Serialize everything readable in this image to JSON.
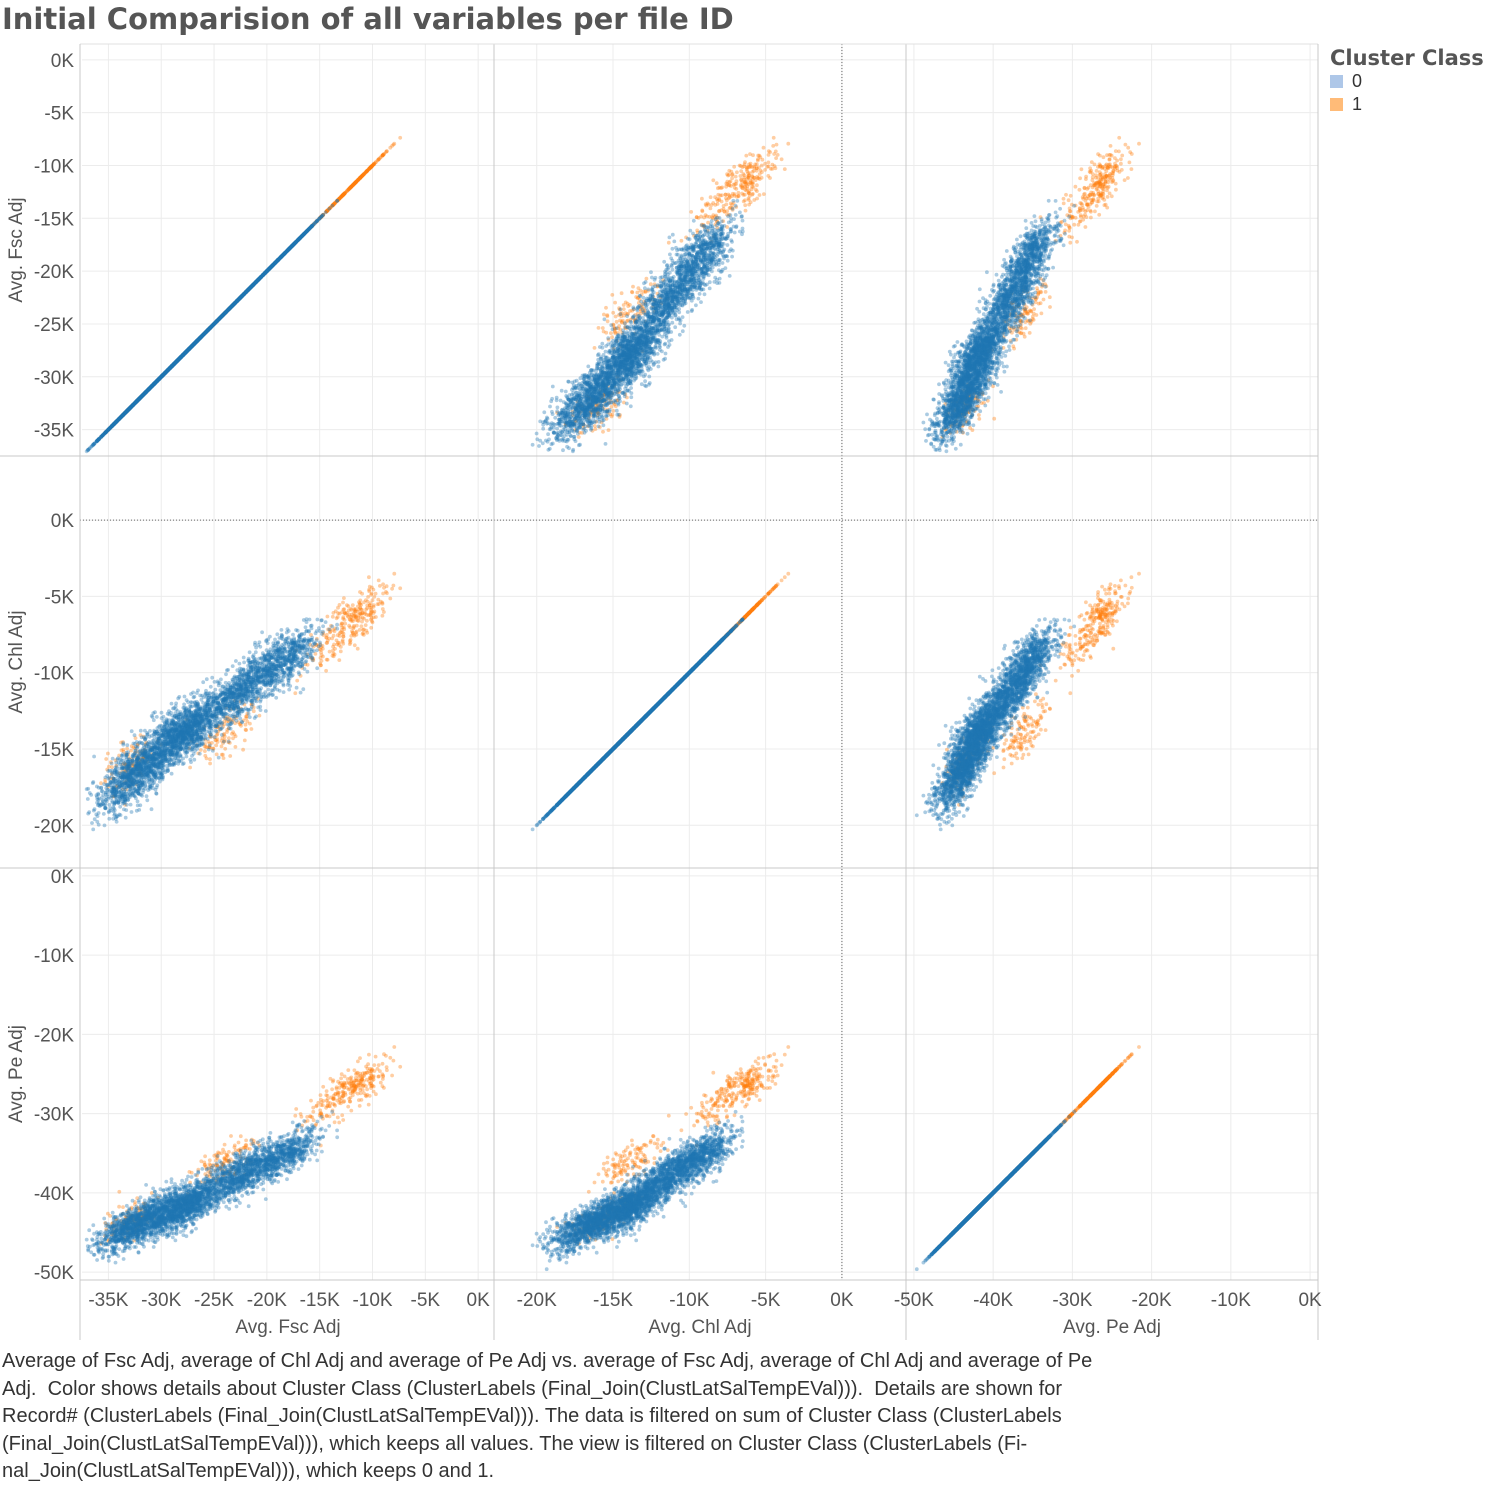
{
  "title": "Initial Comparision of all variables per file ID",
  "legend": {
    "title": "Cluster Class",
    "items": [
      {
        "label": "0",
        "color": "#aec7e8"
      },
      {
        "label": "1",
        "color": "#ffbb78"
      }
    ]
  },
  "caption_lines": [
    "Average of Fsc Adj, average of Chl Adj and average of Pe Adj vs. average of Fsc Adj, average of Chl Adj and average of Pe",
    "Adj.  Color shows details about Cluster Class (ClusterLabels (Final_Join(ClustLatSalTempEVal))).  Details are shown for",
    "Record# (ClusterLabels (Final_Join(ClustLatSalTempEVal))). The data is filtered on sum of Cluster Class (ClusterLabels",
    "(Final_Join(ClustLatSalTempEVal))), which keeps all values. The view is filtered on Cluster Class (ClusterLabels (Fi-",
    "nal_Join(ClustLatSalTempEVal))), which keeps 0 and 1."
  ],
  "chart_data": {
    "type": "scatter",
    "title": "Initial Comparision of all variables per file ID",
    "grid": true,
    "point_colors": {
      "0": "#1f77b4",
      "1": "#ff7f0e"
    },
    "variables": [
      {
        "name": "Avg. Fsc Adj",
        "range": [
          -37500,
          1500
        ],
        "ticks": [
          {
            "v": 0,
            "l": "0K"
          },
          {
            "v": -5000,
            "l": "-5K"
          },
          {
            "v": -10000,
            "l": "-10K"
          },
          {
            "v": -15000,
            "l": "-15K"
          },
          {
            "v": -20000,
            "l": "-20K"
          },
          {
            "v": -25000,
            "l": "-25K"
          },
          {
            "v": -30000,
            "l": "-30K"
          },
          {
            "v": -35000,
            "l": "-35K"
          }
        ]
      },
      {
        "name": "Avg. Chl Adj",
        "range": [
          -22800,
          4200
        ],
        "ticks": [
          {
            "v": 0,
            "l": "0K"
          },
          {
            "v": -5000,
            "l": "-5K"
          },
          {
            "v": -10000,
            "l": "-10K"
          },
          {
            "v": -15000,
            "l": "-15K"
          },
          {
            "v": -20000,
            "l": "-20K"
          }
        ]
      },
      {
        "name": "Avg. Pe Adj",
        "range": [
          -51000,
          1000
        ],
        "ticks": [
          {
            "v": 0,
            "l": "0K"
          },
          {
            "v": -10000,
            "l": "-10K"
          },
          {
            "v": -20000,
            "l": "-20K"
          },
          {
            "v": -30000,
            "l": "-30K"
          },
          {
            "v": -40000,
            "l": "-40K"
          },
          {
            "v": -50000,
            "l": "-50K"
          }
        ]
      }
    ],
    "x_ticks": [
      [
        {
          "v": -35000,
          "l": "-35K"
        },
        {
          "v": -30000,
          "l": "-30K"
        },
        {
          "v": -25000,
          "l": "-25K"
        },
        {
          "v": -20000,
          "l": "-20K"
        },
        {
          "v": -15000,
          "l": "-15K"
        },
        {
          "v": -10000,
          "l": "-10K"
        },
        {
          "v": -5000,
          "l": "-5K"
        },
        {
          "v": 0,
          "l": "0K"
        }
      ],
      [
        {
          "v": -20000,
          "l": "-20K"
        },
        {
          "v": -15000,
          "l": "-15K"
        },
        {
          "v": -10000,
          "l": "-10K"
        },
        {
          "v": -5000,
          "l": "-5K"
        },
        {
          "v": 0,
          "l": "0K"
        }
      ],
      [
        {
          "v": -50000,
          "l": "-50K"
        },
        {
          "v": -40000,
          "l": "-40K"
        },
        {
          "v": -30000,
          "l": "-30K"
        },
        {
          "v": -20000,
          "l": "-20K"
        },
        {
          "v": -10000,
          "l": "-10K"
        },
        {
          "v": 0,
          "l": "0K"
        }
      ]
    ],
    "series": [
      {
        "name": "0",
        "centers": [
          [
            -32000,
            -16500,
            -44000
          ],
          [
            -28000,
            -14000,
            -42000
          ],
          [
            -23000,
            -11500,
            -38000
          ],
          [
            -18000,
            -9000,
            -35000
          ],
          [
            -27000,
            -13500,
            -41000
          ],
          [
            -34000,
            -17500,
            -45000
          ],
          [
            -30500,
            -15000,
            -42500
          ],
          [
            -20500,
            -10000,
            -36500
          ]
        ],
        "counts": [
          700,
          700,
          600,
          500,
          400,
          200,
          300,
          300
        ],
        "spread": [
          1600,
          1100,
          1600
        ]
      },
      {
        "name": "1",
        "centers": [
          [
            -11000,
            -6000,
            -26000
          ],
          [
            -24000,
            -14000,
            -36000
          ],
          [
            -33000,
            -16000,
            -43500
          ],
          [
            -14000,
            -8000,
            -29000
          ]
        ],
        "counts": [
          180,
          120,
          110,
          90
        ],
        "spread": [
          1500,
          1000,
          1500
        ]
      }
    ]
  }
}
